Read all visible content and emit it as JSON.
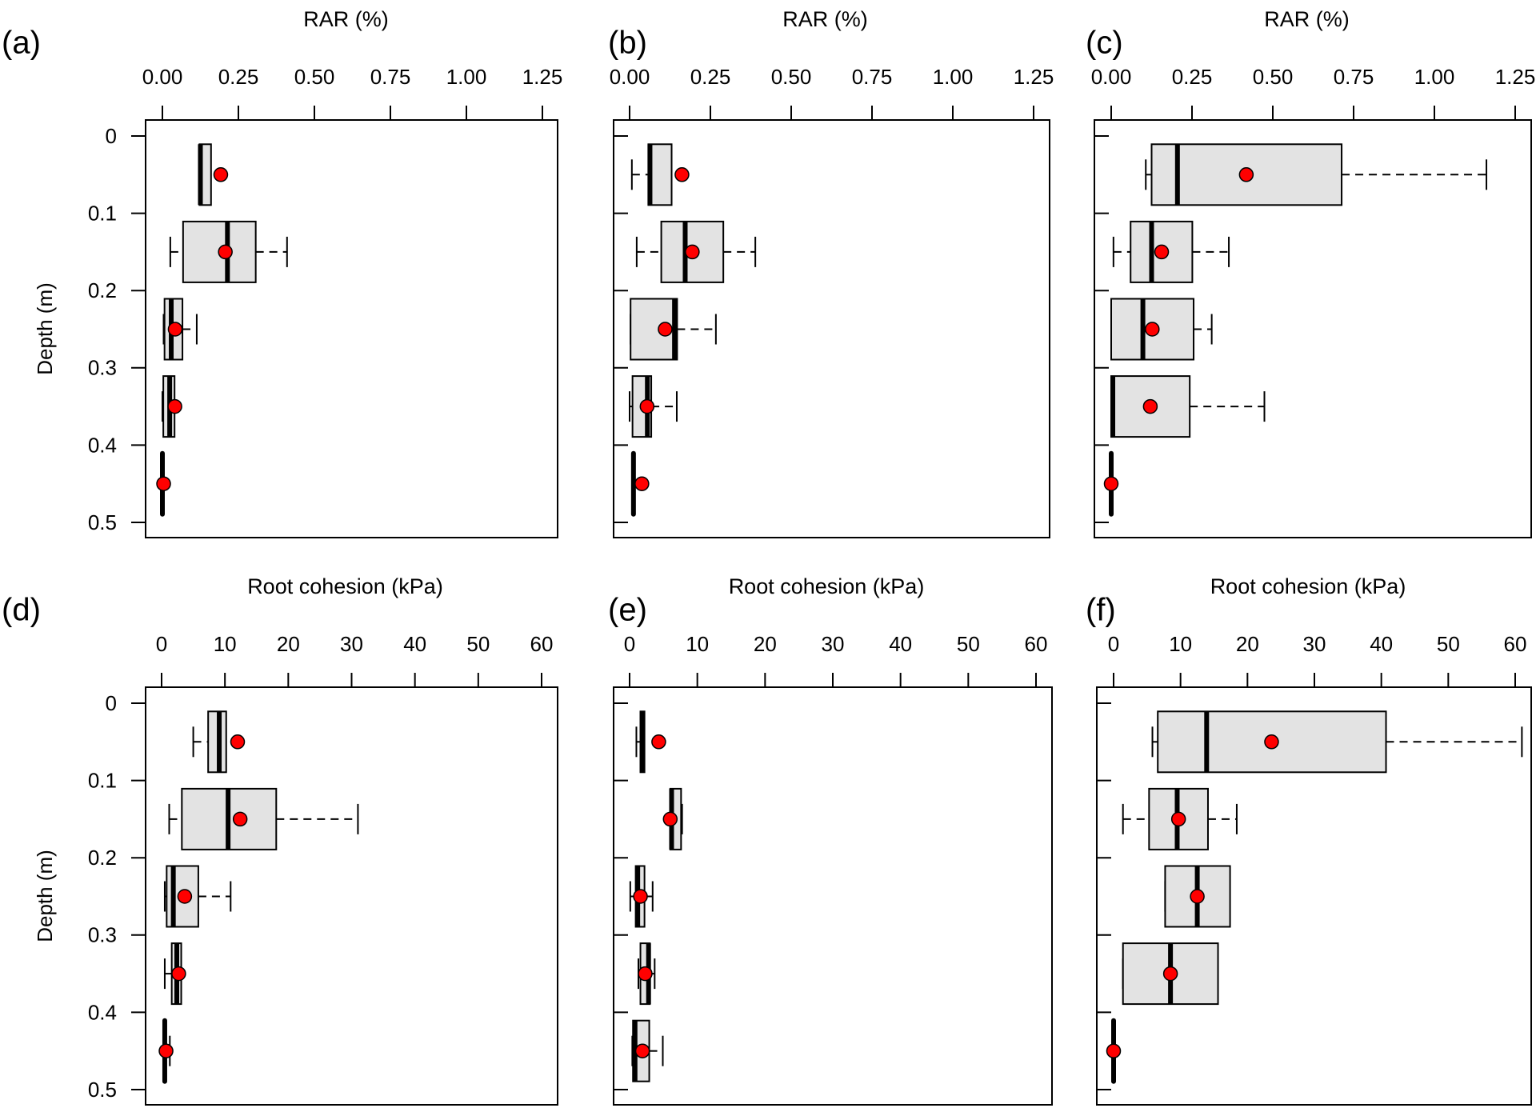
{
  "figure": {
    "y_axis_label": "Depth (m)",
    "y_ticks": [
      "0",
      "0.1",
      "0.2",
      "0.3",
      "0.4",
      "0.5"
    ],
    "colors": {
      "box_fill": "#e3e3e3",
      "mean_marker": "#ff0000",
      "line": "#000000"
    }
  },
  "chart_data": [
    {
      "panel": "(a)",
      "type": "boxplot",
      "orientation": "horizontal",
      "xlabel": "RAR (%)",
      "ylabel": "Depth (m)",
      "xlim": [
        0,
        1.25
      ],
      "ylim": [
        0,
        0.5
      ],
      "x_ticks": [
        "0.00",
        "0.25",
        "0.50",
        "0.75",
        "1.00",
        "1.25"
      ],
      "y_ticks": [
        "0",
        "0.1",
        "0.2",
        "0.3",
        "0.4",
        "0.5"
      ],
      "depths": [
        0.05,
        0.15,
        0.25,
        0.35,
        0.45
      ],
      "boxes": [
        {
          "depth": 0.05,
          "whisker_low": 0.122,
          "q1": 0.122,
          "median": 0.125,
          "q3": 0.16,
          "whisker_high": 0.16,
          "mean": 0.192
        },
        {
          "depth": 0.15,
          "whisker_low": 0.026,
          "q1": 0.068,
          "median": 0.214,
          "q3": 0.307,
          "whisker_high": 0.41,
          "mean": 0.207
        },
        {
          "depth": 0.25,
          "whisker_low": 0.004,
          "q1": 0.007,
          "median": 0.029,
          "q3": 0.066,
          "whisker_high": 0.113,
          "mean": 0.042
        },
        {
          "depth": 0.35,
          "whisker_low": 0.0,
          "q1": 0.003,
          "median": 0.024,
          "q3": 0.04,
          "whisker_high": 0.04,
          "mean": 0.041
        },
        {
          "depth": 0.45,
          "whisker_low": 0.0,
          "q1": 0.0,
          "median": 0.0,
          "q3": 0.0,
          "whisker_high": 0.0,
          "mean": 0.004
        }
      ]
    },
    {
      "panel": "(b)",
      "type": "boxplot",
      "orientation": "horizontal",
      "xlabel": "RAR (%)",
      "ylabel": "",
      "xlim": [
        0,
        1.25
      ],
      "ylim": [
        0,
        0.5
      ],
      "x_ticks": [
        "0.00",
        "0.25",
        "0.50",
        "0.75",
        "1.00",
        "1.25"
      ],
      "y_ticks": [],
      "depths": [
        0.05,
        0.15,
        0.25,
        0.35,
        0.45
      ],
      "boxes": [
        {
          "depth": 0.05,
          "whisker_low": 0.007,
          "q1": 0.058,
          "median": 0.063,
          "q3": 0.13,
          "whisker_high": 0.13,
          "mean": 0.162
        },
        {
          "depth": 0.15,
          "whisker_low": 0.022,
          "q1": 0.098,
          "median": 0.172,
          "q3": 0.29,
          "whisker_high": 0.389,
          "mean": 0.194
        },
        {
          "depth": 0.25,
          "whisker_low": 0.003,
          "q1": 0.003,
          "median": 0.139,
          "q3": 0.147,
          "whisker_high": 0.267,
          "mean": 0.11
        },
        {
          "depth": 0.35,
          "whisker_low": 0.0,
          "q1": 0.009,
          "median": 0.055,
          "q3": 0.067,
          "whisker_high": 0.146,
          "mean": 0.054
        },
        {
          "depth": 0.45,
          "whisker_low": 0.012,
          "q1": 0.012,
          "median": 0.012,
          "q3": 0.012,
          "whisker_high": 0.012,
          "mean": 0.038
        }
      ]
    },
    {
      "panel": "(c)",
      "type": "boxplot",
      "orientation": "horizontal",
      "xlabel": "RAR (%)",
      "ylabel": "",
      "xlim": [
        0,
        1.25
      ],
      "ylim": [
        0,
        0.5
      ],
      "x_ticks": [
        "0.00",
        "0.25",
        "0.50",
        "0.75",
        "1.00",
        "1.25"
      ],
      "y_ticks": [],
      "depths": [
        0.05,
        0.15,
        0.25,
        0.35,
        0.45
      ],
      "boxes": [
        {
          "depth": 0.05,
          "whisker_low": 0.107,
          "q1": 0.125,
          "median": 0.205,
          "q3": 0.713,
          "whisker_high": 1.161,
          "mean": 0.418
        },
        {
          "depth": 0.15,
          "whisker_low": 0.007,
          "q1": 0.06,
          "median": 0.125,
          "q3": 0.251,
          "whisker_high": 0.364,
          "mean": 0.156
        },
        {
          "depth": 0.25,
          "whisker_low": 0.0,
          "q1": 0.0,
          "median": 0.098,
          "q3": 0.255,
          "whisker_high": 0.311,
          "mean": 0.127
        },
        {
          "depth": 0.35,
          "whisker_low": 0.0,
          "q1": 0.0,
          "median": 0.005,
          "q3": 0.243,
          "whisker_high": 0.474,
          "mean": 0.121
        },
        {
          "depth": 0.45,
          "whisker_low": 0.0,
          "q1": 0.0,
          "median": 0.0,
          "q3": 0.0,
          "whisker_high": 0.0,
          "mean": 0.0
        }
      ]
    },
    {
      "panel": "(d)",
      "type": "boxplot",
      "orientation": "horizontal",
      "xlabel": "Root cohesion (kPa)",
      "ylabel": "Depth (m)",
      "xlim": [
        0,
        60
      ],
      "ylim": [
        0,
        0.5
      ],
      "x_ticks": [
        "0",
        "10",
        "20",
        "30",
        "40",
        "50",
        "60"
      ],
      "y_ticks": [
        "0",
        "0.1",
        "0.2",
        "0.3",
        "0.4",
        "0.5"
      ],
      "depths": [
        0.05,
        0.15,
        0.25,
        0.35,
        0.45
      ],
      "boxes": [
        {
          "depth": 0.05,
          "whisker_low": 5.0,
          "q1": 7.35,
          "median": 9.1,
          "q3": 10.2,
          "whisker_high": 10.2,
          "mean": 12.0
        },
        {
          "depth": 0.15,
          "whisker_low": 1.2,
          "q1": 3.2,
          "median": 10.5,
          "q3": 18.1,
          "whisker_high": 31.0,
          "mean": 12.4
        },
        {
          "depth": 0.25,
          "whisker_low": 0.5,
          "q1": 0.8,
          "median": 1.85,
          "q3": 5.8,
          "whisker_high": 10.9,
          "mean": 3.65
        },
        {
          "depth": 0.35,
          "whisker_low": 0.5,
          "q1": 1.6,
          "median": 2.4,
          "q3": 3.1,
          "whisker_high": 3.1,
          "mean": 2.7
        },
        {
          "depth": 0.45,
          "whisker_low": 0.5,
          "q1": 0.5,
          "median": 0.5,
          "q3": 0.5,
          "whisker_high": 1.3,
          "mean": 0.7
        }
      ]
    },
    {
      "panel": "(e)",
      "type": "boxplot",
      "orientation": "horizontal",
      "xlabel": "Root cohesion (kPa)",
      "ylabel": "",
      "xlim": [
        0,
        60
      ],
      "ylim": [
        0,
        0.5
      ],
      "x_ticks": [
        "0",
        "10",
        "20",
        "30",
        "40",
        "50",
        "60"
      ],
      "y_ticks": [],
      "depths": [
        0.05,
        0.15,
        0.25,
        0.35,
        0.45
      ],
      "boxes": [
        {
          "depth": 0.05,
          "whisker_low": 1.0,
          "q1": 1.6,
          "median": 1.85,
          "q3": 2.2,
          "whisker_high": 2.2,
          "mean": 4.3
        },
        {
          "depth": 0.15,
          "whisker_low": 6.0,
          "q1": 6.0,
          "median": 6.2,
          "q3": 7.6,
          "whisker_high": 7.75,
          "mean": 6.0
        },
        {
          "depth": 0.25,
          "whisker_low": 0.1,
          "q1": 0.9,
          "median": 1.2,
          "q3": 2.2,
          "whisker_high": 3.4,
          "mean": 1.6
        },
        {
          "depth": 0.35,
          "whisker_low": 1.3,
          "q1": 1.6,
          "median": 2.8,
          "q3": 3.0,
          "whisker_high": 3.7,
          "mean": 2.3
        },
        {
          "depth": 0.45,
          "whisker_low": 0.4,
          "q1": 0.5,
          "median": 0.8,
          "q3": 2.9,
          "whisker_high": 4.9,
          "mean": 1.9
        }
      ]
    },
    {
      "panel": "(f)",
      "type": "boxplot",
      "orientation": "horizontal",
      "xlabel": "Root cohesion (kPa)",
      "ylabel": "",
      "xlim": [
        0,
        60
      ],
      "ylim": [
        0,
        0.5
      ],
      "x_ticks": [
        "0",
        "10",
        "20",
        "30",
        "40",
        "50",
        "60"
      ],
      "y_ticks": [],
      "depths": [
        0.05,
        0.15,
        0.25,
        0.35,
        0.45
      ],
      "boxes": [
        {
          "depth": 0.05,
          "whisker_low": 5.8,
          "q1": 6.6,
          "median": 13.9,
          "q3": 40.7,
          "whisker_high": 61.0,
          "mean": 23.6
        },
        {
          "depth": 0.15,
          "whisker_low": 1.4,
          "q1": 5.3,
          "median": 9.5,
          "q3": 14.1,
          "whisker_high": 18.4,
          "mean": 9.7
        },
        {
          "depth": 0.25,
          "whisker_low": 7.7,
          "q1": 7.7,
          "median": 12.5,
          "q3": 17.4,
          "whisker_high": 17.4,
          "mean": 12.5
        },
        {
          "depth": 0.35,
          "whisker_low": 1.4,
          "q1": 1.4,
          "median": 8.5,
          "q3": 15.6,
          "whisker_high": 15.6,
          "mean": 8.5
        },
        {
          "depth": 0.45,
          "whisker_low": 0.0,
          "q1": 0.0,
          "median": 0.0,
          "q3": 0.0,
          "whisker_high": 0.0,
          "mean": 0.0
        }
      ]
    }
  ]
}
